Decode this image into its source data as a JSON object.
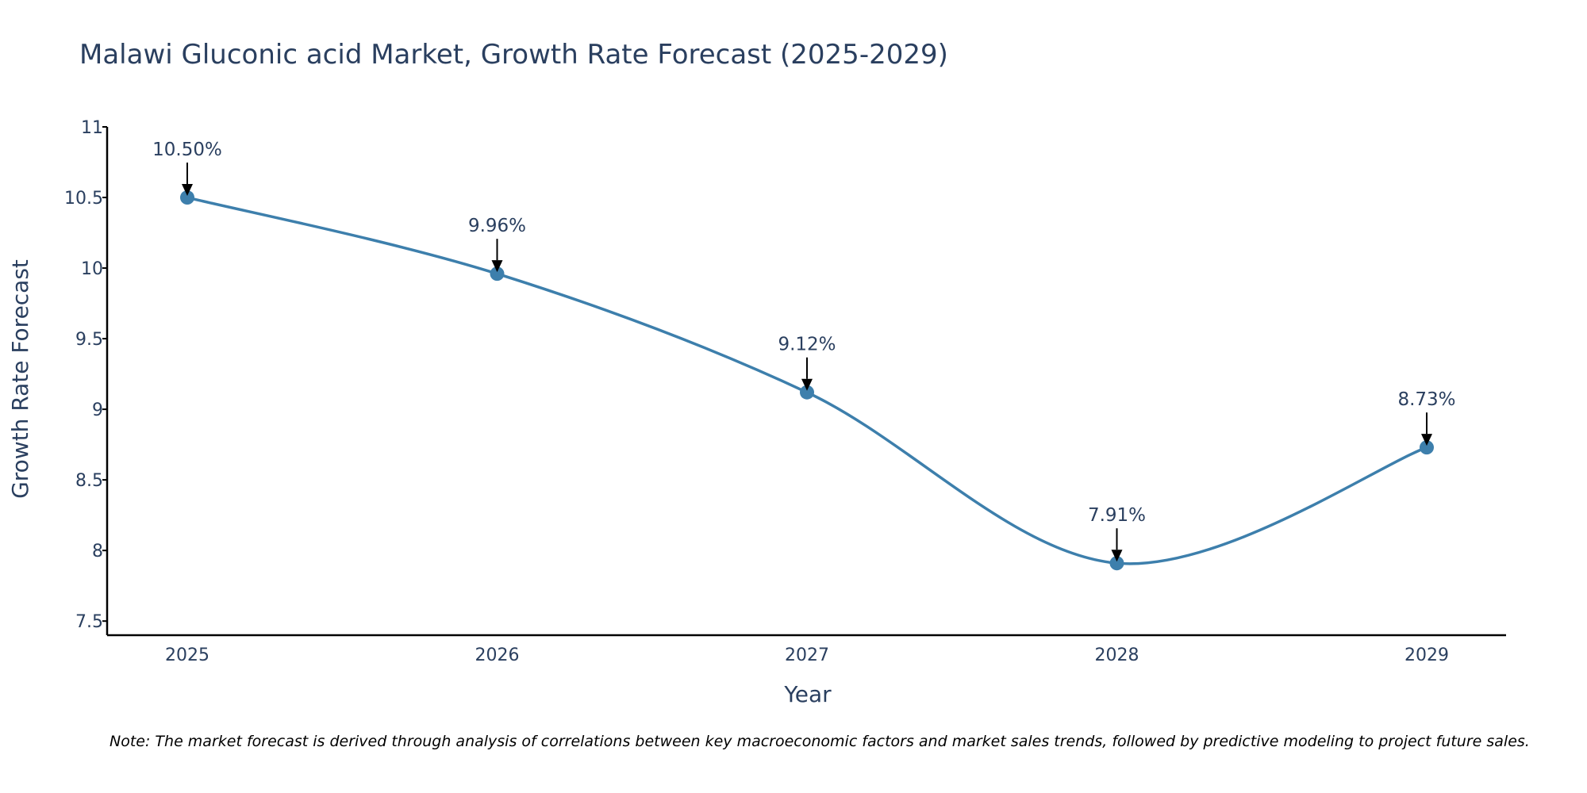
{
  "chart_data": {
    "type": "line",
    "title": "Malawi Gluconic acid Market, Growth Rate Forecast (2025-2029)",
    "xlabel": "Year",
    "ylabel": "Growth Rate Forecast",
    "categories": [
      "2025",
      "2026",
      "2027",
      "2028",
      "2029"
    ],
    "series": [
      {
        "name": "Growth Rate Forecast",
        "values": [
          10.5,
          9.96,
          9.12,
          7.91,
          8.73
        ],
        "labels": [
          "10.50%",
          "9.96%",
          "9.12%",
          "7.91%",
          "8.73%"
        ]
      }
    ],
    "ylim": [
      7.4,
      11
    ],
    "yticks": [
      7.5,
      8,
      8.5,
      9,
      9.5,
      10,
      10.5,
      11
    ],
    "ytick_labels": [
      "7.5",
      "8",
      "8.5",
      "9",
      "9.5",
      "10",
      "10.5",
      "11"
    ],
    "grid": false,
    "line_shape": "spline",
    "colors": {
      "line": "#3d7fac",
      "marker": "#3d7fac",
      "arrow": "#000000",
      "axis": "#000000",
      "text": "#2a3f5f"
    },
    "note": "Note: The market forecast is derived through analysis of correlations between key macroeconomic factors and market sales trends, followed by predictive modeling to project future sales."
  }
}
